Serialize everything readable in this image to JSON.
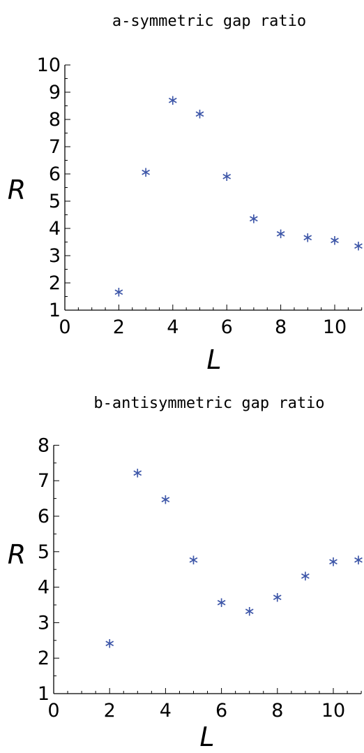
{
  "chart_data": [
    {
      "type": "scatter",
      "title": "a-symmetric gap ratio",
      "xlabel": "L",
      "ylabel": "R",
      "xlim": [
        0,
        11
      ],
      "ylim": [
        1,
        10
      ],
      "x_ticks": [
        "0",
        "2",
        "4",
        "6",
        "8",
        "10"
      ],
      "y_ticks": [
        "1",
        "2",
        "3",
        "4",
        "5",
        "6",
        "7",
        "8",
        "9",
        "10"
      ],
      "marker": "*",
      "color": "#3d56a8",
      "series": [
        {
          "x": [
            2,
            3,
            4,
            5,
            6,
            7,
            8,
            9,
            10,
            11
          ],
          "y": [
            1.7,
            6.1,
            8.75,
            8.25,
            5.95,
            4.4,
            3.85,
            3.7,
            3.6,
            3.4
          ]
        }
      ]
    },
    {
      "type": "scatter",
      "title": "b-antisymmetric gap ratio",
      "xlabel": "L",
      "ylabel": "R",
      "xlim": [
        0,
        11
      ],
      "ylim": [
        1,
        8
      ],
      "x_ticks": [
        "0",
        "2",
        "4",
        "6",
        "8",
        "10"
      ],
      "y_ticks": [
        "1",
        "2",
        "3",
        "4",
        "5",
        "6",
        "7",
        "8"
      ],
      "marker": "*",
      "color": "#3d56a8",
      "series": [
        {
          "x": [
            2,
            3,
            4,
            5,
            6,
            7,
            8,
            9,
            10,
            11
          ],
          "y": [
            2.45,
            7.25,
            6.5,
            4.8,
            3.6,
            3.35,
            3.75,
            4.35,
            4.75,
            4.8
          ]
        }
      ]
    }
  ]
}
